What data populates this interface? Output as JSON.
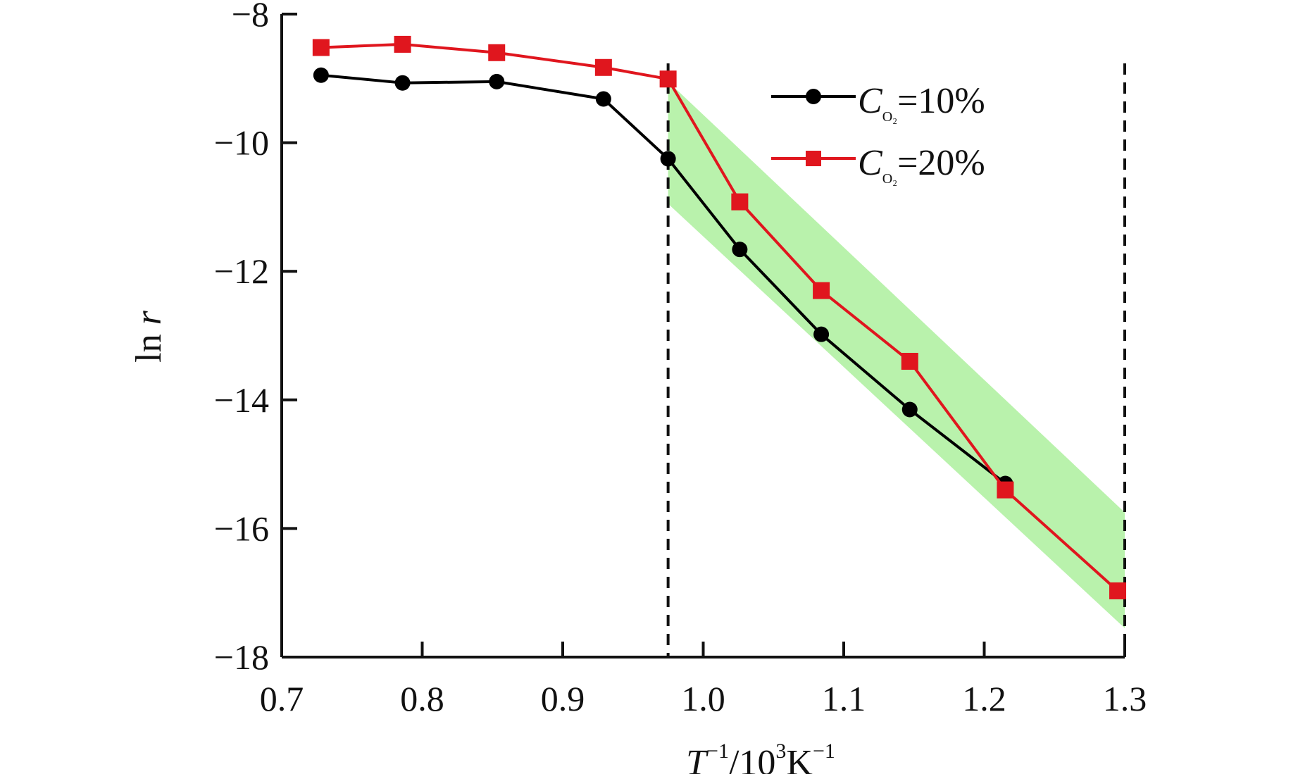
{
  "chart_data": {
    "type": "line",
    "xlabel": {
      "main": "T",
      "sup1": "−1",
      "mid": "/10",
      "sup2": "3",
      "unit": "K",
      "sup3": "−1"
    },
    "ylabel": {
      "main": "ln ",
      "italic": "r"
    },
    "xlim": [
      0.7,
      1.3
    ],
    "ylim": [
      -18,
      -8
    ],
    "xticks": [
      0.7,
      0.8,
      0.9,
      1.0,
      1.1,
      1.2,
      1.3
    ],
    "xtick_labels": [
      "0.7",
      "0.8",
      "0.9",
      "1.0",
      "1.1",
      "1.2",
      "1.3"
    ],
    "yticks": [
      -8,
      -10,
      -12,
      -14,
      -16,
      -18
    ],
    "ytick_labels": [
      "−8",
      "−10",
      "−12",
      "−14",
      "−16",
      "−18"
    ],
    "vlines": [
      0.975,
      1.3
    ],
    "shaded_band": {
      "color": "#b9f2ac",
      "polygon": [
        [
          0.975,
          -9.05
        ],
        [
          1.3,
          -15.75
        ],
        [
          1.3,
          -17.55
        ],
        [
          0.975,
          -10.95
        ]
      ]
    },
    "series": [
      {
        "name": {
          "symbol": "C",
          "subscript": "O₂",
          "text": "=10%"
        },
        "color": "#000000",
        "marker": "circle",
        "x": [
          0.728,
          0.786,
          0.853,
          0.929,
          0.975,
          1.026,
          1.084,
          1.147,
          1.215
        ],
        "y": [
          -8.95,
          -9.07,
          -9.05,
          -9.32,
          -10.25,
          -11.66,
          -12.98,
          -14.15,
          -15.3
        ]
      },
      {
        "name": {
          "symbol": "C",
          "subscript": "O₂",
          "text": "=20%"
        },
        "color": "#e0161e",
        "marker": "square",
        "x": [
          0.728,
          0.786,
          0.853,
          0.929,
          0.975,
          1.026,
          1.084,
          1.147,
          1.215,
          1.295
        ],
        "y": [
          -8.52,
          -8.47,
          -8.6,
          -8.83,
          -9.01,
          -10.92,
          -12.3,
          -13.4,
          -15.4,
          -16.97
        ]
      }
    ],
    "legend_position": "top-right",
    "grid": false
  }
}
